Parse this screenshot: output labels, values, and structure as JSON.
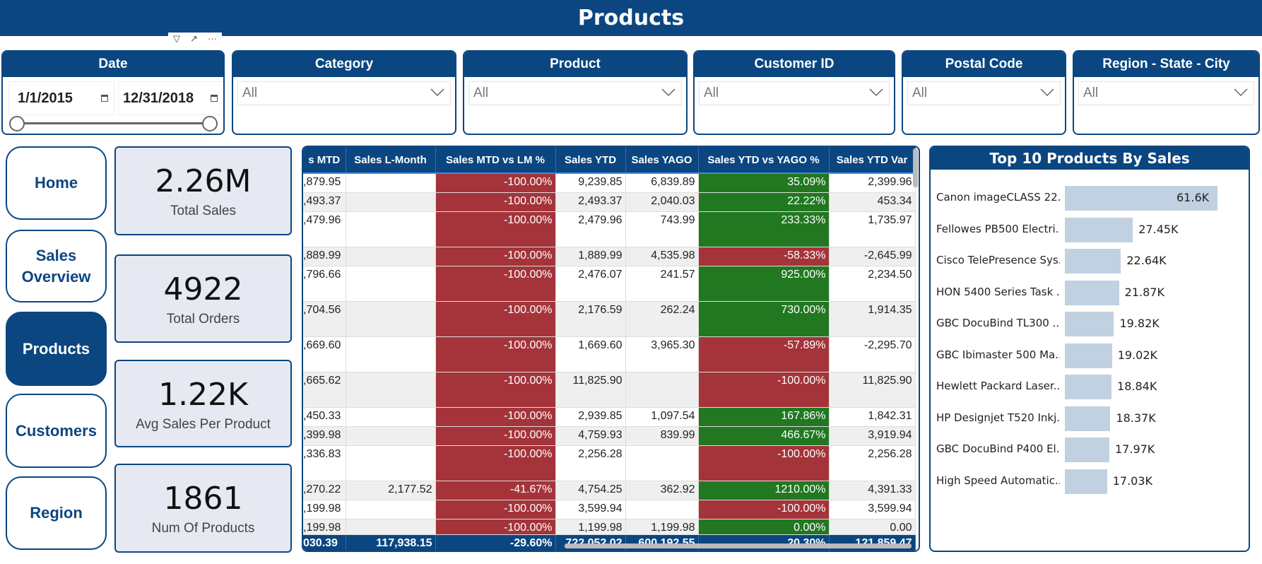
{
  "header": {
    "title": "Products"
  },
  "visual_tools": [
    "filter-icon",
    "focus-mode-icon",
    "more-options-icon"
  ],
  "colors": {
    "brand": "#0b4680",
    "negative": "#a4343a",
    "positive": "#217821",
    "bar": "#c2d1e1",
    "kpi_bg": "#e6e9f1"
  },
  "slicers": {
    "date": {
      "title": "Date",
      "start": "1/1/2015",
      "end": "12/31/2018"
    },
    "category": {
      "title": "Category",
      "value": "All"
    },
    "product": {
      "title": "Product",
      "value": "All"
    },
    "customer": {
      "title": "Customer ID",
      "value": "All"
    },
    "postal": {
      "title": "Postal Code",
      "value": "All"
    },
    "region": {
      "title": "Region - State - City",
      "value": "All"
    }
  },
  "nav": [
    {
      "label": "Home"
    },
    {
      "label": "Sales Overview"
    },
    {
      "label": "Products",
      "active": true
    },
    {
      "label": "Customers"
    },
    {
      "label": "Region"
    }
  ],
  "kpis": [
    {
      "value": "2.26M",
      "label": "Total Sales"
    },
    {
      "value": "4922",
      "label": "Total Orders"
    },
    {
      "value": "1.22K",
      "label": "Avg Sales Per Product"
    },
    {
      "value": "1861",
      "label": "Num Of Products"
    }
  ],
  "table": {
    "columns": [
      "s MTD",
      "Sales L-Month",
      "Sales MTD vs LM %",
      "Sales YTD",
      "Sales YAGO",
      "Sales YTD vs YAGO %",
      "Sales YTD Var"
    ],
    "rows": [
      {
        "cells": [
          ",879.95",
          "",
          "-100.00%",
          "9,239.85",
          "6,839.89",
          "35.09%",
          "2,399.96"
        ],
        "yago_status": "positive",
        "tall": false
      },
      {
        "cells": [
          ",493.37",
          "",
          "-100.00%",
          "2,493.37",
          "2,040.03",
          "22.22%",
          "453.34"
        ],
        "yago_status": "positive",
        "tall": false
      },
      {
        "cells": [
          ",479.96",
          "",
          "-100.00%",
          "2,479.96",
          "743.99",
          "233.33%",
          "1,735.97"
        ],
        "yago_status": "positive",
        "tall": true
      },
      {
        "cells": [
          ",889.99",
          "",
          "-100.00%",
          "1,889.99",
          "4,535.98",
          "-58.33%",
          "-2,645.99"
        ],
        "yago_status": "negative",
        "tall": false
      },
      {
        "cells": [
          ",796.66",
          "",
          "-100.00%",
          "2,476.07",
          "241.57",
          "925.00%",
          "2,234.50"
        ],
        "yago_status": "positive",
        "tall": true
      },
      {
        "cells": [
          ",704.56",
          "",
          "-100.00%",
          "2,176.59",
          "262.24",
          "730.00%",
          "1,914.35"
        ],
        "yago_status": "positive",
        "tall": true
      },
      {
        "cells": [
          ",669.60",
          "",
          "-100.00%",
          "1,669.60",
          "3,965.30",
          "-57.89%",
          "-2,295.70"
        ],
        "yago_status": "negative",
        "tall": true
      },
      {
        "cells": [
          ",665.62",
          "",
          "-100.00%",
          "11,825.90",
          "",
          "-100.00%",
          "11,825.90"
        ],
        "yago_status": "negative",
        "tall": true
      },
      {
        "cells": [
          ",450.33",
          "",
          "-100.00%",
          "2,939.85",
          "1,097.54",
          "167.86%",
          "1,842.31"
        ],
        "yago_status": "positive",
        "tall": false
      },
      {
        "cells": [
          ",399.98",
          "",
          "-100.00%",
          "4,759.93",
          "839.99",
          "466.67%",
          "3,919.94"
        ],
        "yago_status": "positive",
        "tall": false
      },
      {
        "cells": [
          ",336.83",
          "",
          "-100.00%",
          "2,256.28",
          "",
          "-100.00%",
          "2,256.28"
        ],
        "yago_status": "negative",
        "tall": true
      },
      {
        "cells": [
          ",270.22",
          "2,177.52",
          "-41.67%",
          "4,754.25",
          "362.92",
          "1210.00%",
          "4,391.33"
        ],
        "yago_status": "positive",
        "tall": false
      },
      {
        "cells": [
          ",199.98",
          "",
          "-100.00%",
          "3,599.94",
          "",
          "-100.00%",
          "3,599.94"
        ],
        "yago_status": "negative",
        "tall": false
      },
      {
        "cells": [
          ",199.98",
          "",
          "-100.00%",
          "1,199.98",
          "1,199.98",
          "0.00%",
          "0.00"
        ],
        "yago_status": "positive",
        "tall": false
      }
    ],
    "totals": [
      "030.39",
      "117,938.15",
      "-29.60%",
      "722,052.02",
      "600,192.55",
      "20.30%",
      "121,859.47"
    ]
  },
  "chart_data": {
    "type": "bar",
    "orientation": "horizontal",
    "title": "Top 10 Products By Sales",
    "categories": [
      "Canon imageCLASS 22...",
      "Fellowes PB500 Electri...",
      "Cisco TelePresence Sys...",
      "HON 5400 Series Task ...",
      "GBC DocuBind TL300 ...",
      "GBC Ibimaster 500 Ma...",
      "Hewlett Packard Laser...",
      "HP Designjet T520 Inkj...",
      "GBC DocuBind P400 El...",
      "High Speed Automatic..."
    ],
    "values": [
      61600,
      27450,
      22640,
      21870,
      19820,
      19020,
      18840,
      18370,
      17970,
      17030
    ],
    "labels": [
      "61.6K",
      "27.45K",
      "22.64K",
      "21.87K",
      "19.82K",
      "19.02K",
      "18.84K",
      "18.37K",
      "17.97K",
      "17.03K"
    ],
    "grid": false,
    "legend": "none"
  }
}
